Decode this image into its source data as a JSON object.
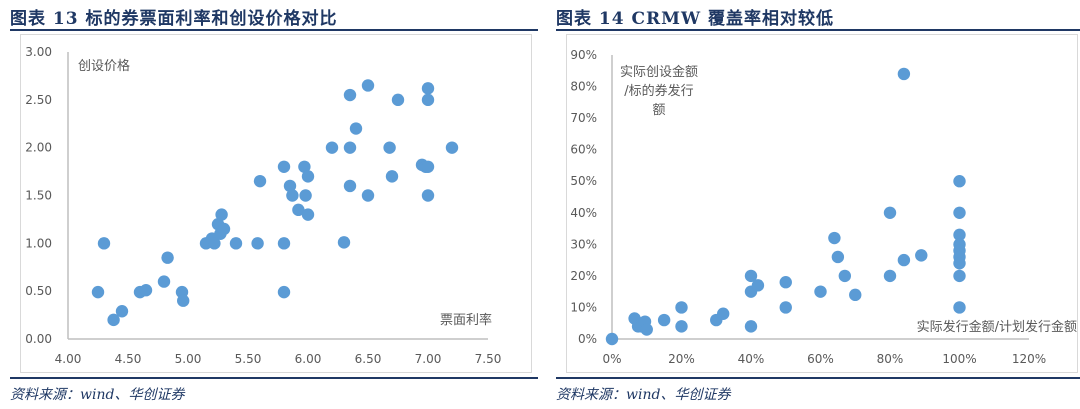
{
  "charts": [
    {
      "title": "图表 13   标的券票面利率和创设价格对比",
      "source": "资料来源：wind、华创证券",
      "xlabel": "票面利率",
      "ylabel": "创设价格"
    },
    {
      "title": "图表 14   CRMW 覆盖率相对较低",
      "source": "资料来源：wind、华创证券",
      "xlabel": "实际发行金额/计划发行金额",
      "ylabel_lines": [
        "实际创设金额",
        "/标的券发行",
        "额"
      ]
    }
  ],
  "colors": {
    "point": "#5b9bd5",
    "axis": "#bfbfbf",
    "title": "#1f3864"
  },
  "chart_data": [
    {
      "type": "scatter",
      "title": "标的券票面利率和创设价格对比",
      "xlabel": "票面利率",
      "ylabel": "创设价格",
      "xlim": [
        4.0,
        7.5
      ],
      "ylim": [
        0.0,
        3.0
      ],
      "xticks": [
        "4.00",
        "4.50",
        "5.00",
        "5.50",
        "6.00",
        "6.50",
        "7.00",
        "7.50"
      ],
      "yticks": [
        "0.00",
        "0.50",
        "1.00",
        "1.50",
        "2.00",
        "2.50",
        "3.00"
      ],
      "grid": false,
      "legend": null,
      "points": [
        [
          4.25,
          0.49
        ],
        [
          4.3,
          1.0
        ],
        [
          4.38,
          0.2
        ],
        [
          4.45,
          0.29
        ],
        [
          4.6,
          0.49
        ],
        [
          4.65,
          0.51
        ],
        [
          4.8,
          0.6
        ],
        [
          4.83,
          0.85
        ],
        [
          4.95,
          0.49
        ],
        [
          4.96,
          0.4
        ],
        [
          5.15,
          1.0
        ],
        [
          5.2,
          1.05
        ],
        [
          5.22,
          1.0
        ],
        [
          5.25,
          1.2
        ],
        [
          5.27,
          1.1
        ],
        [
          5.28,
          1.3
        ],
        [
          5.3,
          1.15
        ],
        [
          5.4,
          1.0
        ],
        [
          5.58,
          1.0
        ],
        [
          5.6,
          1.65
        ],
        [
          5.8,
          1.8
        ],
        [
          5.8,
          1.0
        ],
        [
          5.8,
          0.49
        ],
        [
          5.85,
          1.6
        ],
        [
          5.87,
          1.5
        ],
        [
          5.92,
          1.35
        ],
        [
          5.97,
          1.8
        ],
        [
          5.98,
          1.5
        ],
        [
          6.0,
          1.7
        ],
        [
          6.0,
          1.3
        ],
        [
          6.2,
          2.0
        ],
        [
          6.3,
          1.01
        ],
        [
          6.35,
          2.55
        ],
        [
          6.35,
          2.0
        ],
        [
          6.35,
          1.6
        ],
        [
          6.4,
          2.2
        ],
        [
          6.5,
          2.65
        ],
        [
          6.5,
          1.5
        ],
        [
          6.68,
          2.0
        ],
        [
          6.7,
          1.7
        ],
        [
          6.75,
          2.5
        ],
        [
          6.95,
          1.82
        ],
        [
          6.98,
          1.8
        ],
        [
          7.0,
          2.62
        ],
        [
          7.0,
          2.5
        ],
        [
          7.0,
          1.8
        ],
        [
          7.0,
          1.5
        ],
        [
          7.2,
          2.0
        ]
      ]
    },
    {
      "type": "scatter",
      "title": "CRMW 覆盖率相对较低",
      "xlabel": "实际发行金额/计划发行金额",
      "ylabel": "实际创设金额/标的券发行额",
      "xlim": [
        0,
        120
      ],
      "ylim": [
        0,
        90
      ],
      "xticks": [
        "0%",
        "20%",
        "40%",
        "60%",
        "80%",
        "100%",
        "120%"
      ],
      "yticks": [
        "0%",
        "10%",
        "20%",
        "30%",
        "40%",
        "50%",
        "60%",
        "70%",
        "80%",
        "90%"
      ],
      "grid": false,
      "legend": null,
      "points": [
        [
          0,
          0
        ],
        [
          6.5,
          6.5
        ],
        [
          7.5,
          4
        ],
        [
          8.5,
          4
        ],
        [
          9.5,
          5.5
        ],
        [
          10,
          3
        ],
        [
          15,
          6
        ],
        [
          20,
          10
        ],
        [
          20,
          4
        ],
        [
          30,
          6
        ],
        [
          32,
          8
        ],
        [
          40,
          20
        ],
        [
          40,
          15
        ],
        [
          40,
          4
        ],
        [
          42,
          17
        ],
        [
          50,
          18
        ],
        [
          50,
          10
        ],
        [
          60,
          15
        ],
        [
          64,
          32
        ],
        [
          65,
          26
        ],
        [
          67,
          20
        ],
        [
          70,
          14
        ],
        [
          80,
          40
        ],
        [
          80,
          20
        ],
        [
          84,
          84
        ],
        [
          84,
          25
        ],
        [
          89,
          26.5
        ],
        [
          100,
          50
        ],
        [
          100,
          40
        ],
        [
          100,
          33
        ],
        [
          100,
          30
        ],
        [
          100,
          28
        ],
        [
          100,
          26
        ],
        [
          100,
          24
        ],
        [
          100,
          20
        ],
        [
          100,
          10
        ]
      ]
    }
  ]
}
